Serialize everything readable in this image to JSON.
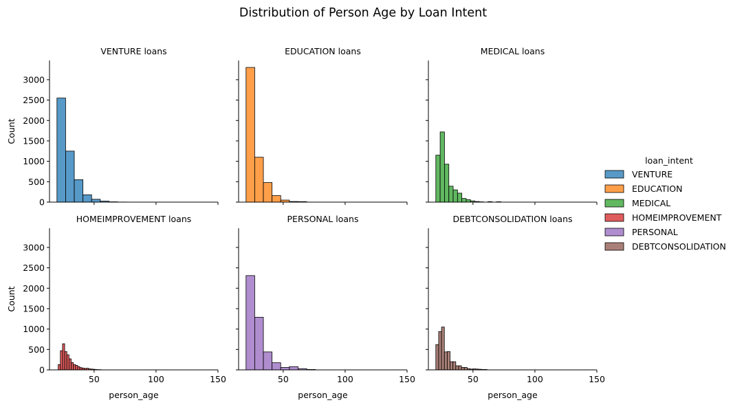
{
  "figure_title": "Distribution of Person Age by Loan Intent",
  "legend": {
    "title": "loan_intent",
    "entries": [
      {
        "label": "VENTURE",
        "color": "#1f77b4"
      },
      {
        "label": "EDUCATION",
        "color": "#ff7f0e"
      },
      {
        "label": "MEDICAL",
        "color": "#2ca02c"
      },
      {
        "label": "HOMEIMPROVEMENT",
        "color": "#d62728"
      },
      {
        "label": "PERSONAL",
        "color": "#9467bd"
      },
      {
        "label": "DEBTCONSOLIDATION",
        "color": "#8c564b"
      }
    ]
  },
  "chart_data": [
    {
      "type": "bar",
      "title": "VENTURE loans",
      "xlabel": "",
      "ylabel": "Count",
      "xlim": [
        14,
        150
      ],
      "ylim": [
        0,
        3470
      ],
      "xticks": [
        50,
        100,
        150
      ],
      "yticks": [
        0,
        500,
        1000,
        1500,
        2000,
        2500,
        3000
      ],
      "show_xtick_labels": false,
      "show_ytick_labels": true,
      "color": "#1f77b4",
      "bins": [
        {
          "x0": 20,
          "x1": 27,
          "count": 2550
        },
        {
          "x0": 27,
          "x1": 34,
          "count": 1250
        },
        {
          "x0": 34,
          "x1": 41,
          "count": 550
        },
        {
          "x0": 41,
          "x1": 48,
          "count": 180
        },
        {
          "x0": 48,
          "x1": 55,
          "count": 70
        },
        {
          "x0": 55,
          "x1": 62,
          "count": 25
        },
        {
          "x0": 62,
          "x1": 69,
          "count": 8
        },
        {
          "x0": 69,
          "x1": 76,
          "count": 3
        }
      ]
    },
    {
      "type": "bar",
      "title": "EDUCATION loans",
      "xlabel": "",
      "ylabel": "",
      "xlim": [
        14,
        150
      ],
      "ylim": [
        0,
        3470
      ],
      "xticks": [
        50,
        100,
        150
      ],
      "yticks": [
        0,
        500,
        1000,
        1500,
        2000,
        2500,
        3000
      ],
      "show_xtick_labels": false,
      "show_ytick_labels": false,
      "color": "#ff7f0e",
      "bins": [
        {
          "x0": 20,
          "x1": 27,
          "count": 3300
        },
        {
          "x0": 27,
          "x1": 34,
          "count": 1100
        },
        {
          "x0": 34,
          "x1": 41,
          "count": 480
        },
        {
          "x0": 41,
          "x1": 48,
          "count": 160
        },
        {
          "x0": 48,
          "x1": 55,
          "count": 50
        },
        {
          "x0": 55,
          "x1": 62,
          "count": 15
        },
        {
          "x0": 62,
          "x1": 69,
          "count": 12
        }
      ]
    },
    {
      "type": "bar",
      "title": "MEDICAL loans",
      "xlabel": "",
      "ylabel": "",
      "xlim": [
        14,
        150
      ],
      "ylim": [
        0,
        3470
      ],
      "xticks": [
        50,
        100,
        150
      ],
      "yticks": [
        0,
        500,
        1000,
        1500,
        2000,
        2500,
        3000
      ],
      "show_xtick_labels": false,
      "show_ytick_labels": false,
      "color": "#2ca02c",
      "bins": [
        {
          "x0": 20,
          "x1": 23.5,
          "count": 1150
        },
        {
          "x0": 23.5,
          "x1": 27,
          "count": 1720
        },
        {
          "x0": 27,
          "x1": 30.5,
          "count": 930
        },
        {
          "x0": 30.5,
          "x1": 34,
          "count": 390
        },
        {
          "x0": 34,
          "x1": 37.5,
          "count": 300
        },
        {
          "x0": 37.5,
          "x1": 41,
          "count": 220
        },
        {
          "x0": 41,
          "x1": 44.5,
          "count": 90
        },
        {
          "x0": 44.5,
          "x1": 48,
          "count": 60
        },
        {
          "x0": 48,
          "x1": 51.5,
          "count": 30
        },
        {
          "x0": 51.5,
          "x1": 55,
          "count": 15
        },
        {
          "x0": 55,
          "x1": 58.5,
          "count": 8
        },
        {
          "x0": 62,
          "x1": 65.5,
          "count": 12
        },
        {
          "x0": 69,
          "x1": 72.5,
          "count": 10
        }
      ]
    },
    {
      "type": "bar",
      "title": "HOMEIMPROVEMENT loans",
      "xlabel": "person_age",
      "ylabel": "Count",
      "xlim": [
        14,
        150
      ],
      "ylim": [
        0,
        3470
      ],
      "xticks": [
        50,
        100,
        150
      ],
      "yticks": [
        0,
        500,
        1000,
        1500,
        2000,
        2500,
        3000
      ],
      "show_xtick_labels": true,
      "show_ytick_labels": true,
      "color": "#d62728",
      "bins": [
        {
          "x0": 21,
          "x1": 22.75,
          "count": 130
        },
        {
          "x0": 22.75,
          "x1": 24.5,
          "count": 470
        },
        {
          "x0": 24.5,
          "x1": 26.25,
          "count": 640
        },
        {
          "x0": 26.25,
          "x1": 28,
          "count": 450
        },
        {
          "x0": 28,
          "x1": 29.75,
          "count": 370
        },
        {
          "x0": 29.75,
          "x1": 31.5,
          "count": 270
        },
        {
          "x0": 31.5,
          "x1": 33.25,
          "count": 180
        },
        {
          "x0": 33.25,
          "x1": 35,
          "count": 130
        },
        {
          "x0": 35,
          "x1": 36.75,
          "count": 110
        },
        {
          "x0": 36.75,
          "x1": 38.5,
          "count": 80
        },
        {
          "x0": 38.5,
          "x1": 40.25,
          "count": 55
        },
        {
          "x0": 40.25,
          "x1": 42,
          "count": 45
        },
        {
          "x0": 42,
          "x1": 43.75,
          "count": 35
        },
        {
          "x0": 43.75,
          "x1": 45.5,
          "count": 40
        },
        {
          "x0": 45.5,
          "x1": 47.25,
          "count": 25
        },
        {
          "x0": 47.25,
          "x1": 49,
          "count": 20
        },
        {
          "x0": 49,
          "x1": 50.75,
          "count": 15
        },
        {
          "x0": 50.75,
          "x1": 52.5,
          "count": 10
        },
        {
          "x0": 52.5,
          "x1": 54.25,
          "count": 6
        },
        {
          "x0": 54.25,
          "x1": 56,
          "count": 5
        }
      ]
    },
    {
      "type": "bar",
      "title": "PERSONAL loans",
      "xlabel": "person_age",
      "ylabel": "",
      "xlim": [
        14,
        150
      ],
      "ylim": [
        0,
        3470
      ],
      "xticks": [
        50,
        100,
        150
      ],
      "yticks": [
        0,
        500,
        1000,
        1500,
        2000,
        2500,
        3000
      ],
      "show_xtick_labels": true,
      "show_ytick_labels": false,
      "color": "#9467bd",
      "bins": [
        {
          "x0": 20,
          "x1": 27,
          "count": 2310
        },
        {
          "x0": 27,
          "x1": 34,
          "count": 1290
        },
        {
          "x0": 34,
          "x1": 41,
          "count": 440
        },
        {
          "x0": 41,
          "x1": 48,
          "count": 175
        },
        {
          "x0": 48,
          "x1": 55,
          "count": 60
        },
        {
          "x0": 55,
          "x1": 62,
          "count": 80
        },
        {
          "x0": 62,
          "x1": 69,
          "count": 30
        },
        {
          "x0": 69,
          "x1": 76,
          "count": 10
        }
      ]
    },
    {
      "type": "bar",
      "title": "DEBTCONSOLIDATION loans",
      "xlabel": "person_age",
      "ylabel": "",
      "xlim": [
        14,
        150
      ],
      "ylim": [
        0,
        3470
      ],
      "xticks": [
        50,
        100,
        150
      ],
      "yticks": [
        0,
        500,
        1000,
        1500,
        2000,
        2500,
        3000
      ],
      "show_xtick_labels": true,
      "show_ytick_labels": false,
      "color": "#8c564b",
      "bins": [
        {
          "x0": 20,
          "x1": 22.3,
          "count": 620
        },
        {
          "x0": 22.3,
          "x1": 24.6,
          "count": 940
        },
        {
          "x0": 24.6,
          "x1": 26.9,
          "count": 1050
        },
        {
          "x0": 26.9,
          "x1": 29.2,
          "count": 440
        },
        {
          "x0": 29.2,
          "x1": 31.5,
          "count": 450
        },
        {
          "x0": 31.5,
          "x1": 33.8,
          "count": 200
        },
        {
          "x0": 33.8,
          "x1": 36.1,
          "count": 200
        },
        {
          "x0": 36.1,
          "x1": 38.4,
          "count": 100
        },
        {
          "x0": 38.4,
          "x1": 40.7,
          "count": 100
        },
        {
          "x0": 40.7,
          "x1": 43,
          "count": 60
        },
        {
          "x0": 43,
          "x1": 45.3,
          "count": 60
        },
        {
          "x0": 45.3,
          "x1": 47.6,
          "count": 30
        },
        {
          "x0": 47.6,
          "x1": 49.9,
          "count": 20
        },
        {
          "x0": 49.9,
          "x1": 52.2,
          "count": 25
        },
        {
          "x0": 52.2,
          "x1": 54.5,
          "count": 20
        },
        {
          "x0": 54.5,
          "x1": 56.8,
          "count": 15
        },
        {
          "x0": 56.8,
          "x1": 59.1,
          "count": 10
        },
        {
          "x0": 59.1,
          "x1": 61.4,
          "count": 10
        }
      ]
    }
  ]
}
